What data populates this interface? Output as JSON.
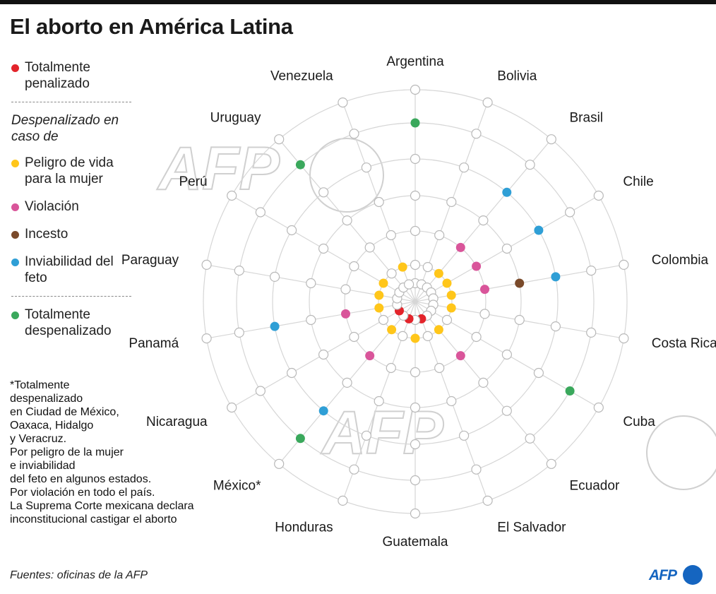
{
  "title": "El aborto en América Latina",
  "legend": {
    "total_penalizado": "Totalmente penalizado",
    "despenalizado_heading": "Despenalizado en caso de",
    "peligro_vida": "Peligro de vida para la mujer",
    "violacion": "Violación",
    "incesto": "Incesto",
    "inviabilidad": "Inviabilidad del feto",
    "total_despenalizado": "Totalmente despenalizado"
  },
  "colors": {
    "penalizado": "#e3242b",
    "peligro_vida": "#ffc61a",
    "violacion": "#d9559a",
    "incesto": "#7a4a2a",
    "inviabilidad": "#2f9fd6",
    "despenalizado": "#3aa85c",
    "empty_node": "#ffffff",
    "grid": "#d6d6d6",
    "watermark": "#d0d0d0",
    "logo": "#1565c0"
  },
  "note": "*Totalmente\ndespenalizado\nen Ciudad de México,\nOaxaca, Hidalgo\ny Veracruz.\nPor peligro de la mujer\ne inviabilidad\ndel feto en algunos estados.\nPor violación en todo el país.\nLa Suprema Corte mexicana declara\ninconstitucional castigar el aborto",
  "source": "Fuentes: oficinas de la AFP",
  "logo": {
    "text": "AFP"
  },
  "watermark": "AFP",
  "chart_data": {
    "type": "radial",
    "ring_categories": [
      "Totalmente penalizado",
      "Peligro de vida para la mujer",
      "Violación",
      "Incesto",
      "Inviabilidad del feto",
      "Totalmente despenalizado"
    ],
    "countries": [
      {
        "name": "Argentina",
        "status": [
          0,
          0,
          0,
          0,
          0,
          1
        ]
      },
      {
        "name": "Bolivia",
        "status": [
          0,
          0,
          0,
          0,
          0,
          0
        ]
      },
      {
        "name": "Brasil",
        "status": [
          0,
          1,
          1,
          0,
          1,
          0
        ]
      },
      {
        "name": "Chile",
        "status": [
          0,
          1,
          1,
          0,
          1,
          0
        ]
      },
      {
        "name": "Colombia",
        "status": [
          0,
          1,
          1,
          1,
          1,
          0
        ]
      },
      {
        "name": "Costa Rica",
        "status": [
          0,
          1,
          0,
          0,
          0,
          0
        ]
      },
      {
        "name": "Cuba",
        "status": [
          0,
          0,
          0,
          0,
          0,
          1
        ]
      },
      {
        "name": "Ecuador",
        "status": [
          0,
          1,
          1,
          0,
          0,
          0
        ]
      },
      {
        "name": "El Salvador",
        "status": [
          1,
          0,
          0,
          0,
          0,
          0
        ]
      },
      {
        "name": "Guatemala",
        "status": [
          0,
          1,
          0,
          0,
          0,
          0
        ]
      },
      {
        "name": "Honduras",
        "status": [
          1,
          0,
          0,
          0,
          0,
          0
        ]
      },
      {
        "name": "México*",
        "status": [
          0,
          1,
          1,
          0,
          1,
          1
        ]
      },
      {
        "name": "Nicaragua",
        "status": [
          1,
          0,
          0,
          0,
          0,
          0
        ]
      },
      {
        "name": "Panamá",
        "status": [
          0,
          1,
          1,
          0,
          1,
          0
        ]
      },
      {
        "name": "Paraguay",
        "status": [
          0,
          1,
          0,
          0,
          0,
          0
        ]
      },
      {
        "name": "Perú",
        "status": [
          0,
          1,
          0,
          0,
          0,
          0
        ]
      },
      {
        "name": "Uruguay",
        "status": [
          0,
          0,
          0,
          0,
          0,
          1
        ]
      },
      {
        "name": "Venezuela",
        "status": [
          0,
          1,
          0,
          0,
          0,
          0
        ]
      }
    ]
  }
}
